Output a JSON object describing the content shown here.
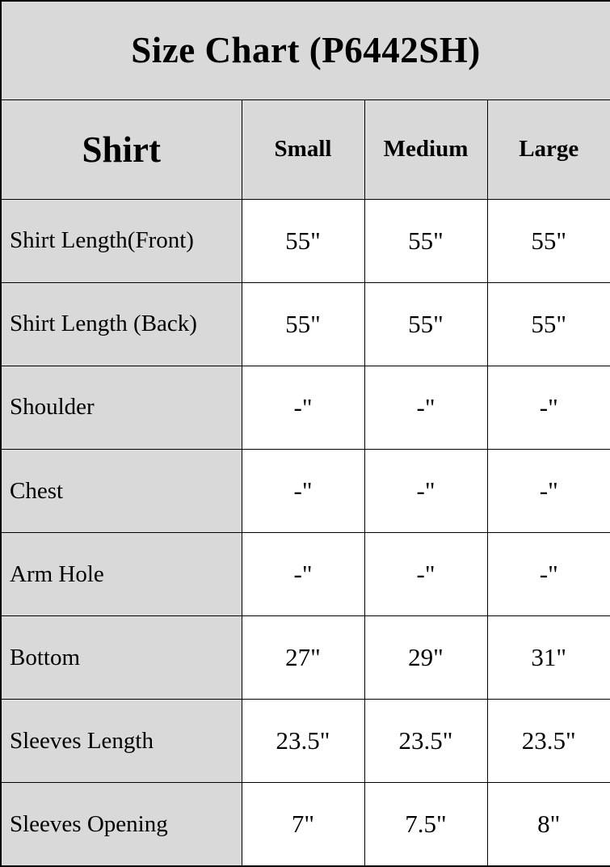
{
  "title": "Size Chart (P6442SH)",
  "chart_data": {
    "type": "table",
    "title": "Size Chart (P6442SH)",
    "corner_label": "Shirt",
    "columns": [
      "Small",
      "Medium",
      "Large"
    ],
    "rows": [
      {
        "label": "Shirt Length(Front)",
        "values": [
          "55\"",
          "55\"",
          "55\""
        ]
      },
      {
        "label": "Shirt Length (Back)",
        "values": [
          "55\"",
          "55\"",
          "55\""
        ]
      },
      {
        "label": "Shoulder",
        "values": [
          "-\"",
          "-\"",
          "-\""
        ]
      },
      {
        "label": "Chest",
        "values": [
          "-\"",
          "-\"",
          "-\""
        ]
      },
      {
        "label": "Arm Hole",
        "values": [
          "-\"",
          "-\"",
          "-\""
        ]
      },
      {
        "label": "Bottom",
        "values": [
          "27\"",
          "29\"",
          "31\""
        ]
      },
      {
        "label": "Sleeves Length",
        "values": [
          "23.5\"",
          "23.5\"",
          "23.5\""
        ]
      },
      {
        "label": "Sleeves Opening",
        "values": [
          "7\"",
          "7.5\"",
          "8\""
        ]
      }
    ]
  },
  "colors": {
    "header_bg": "#d9d9d9",
    "cell_bg": "#ffffff",
    "border": "#000000",
    "text": "#000000"
  }
}
